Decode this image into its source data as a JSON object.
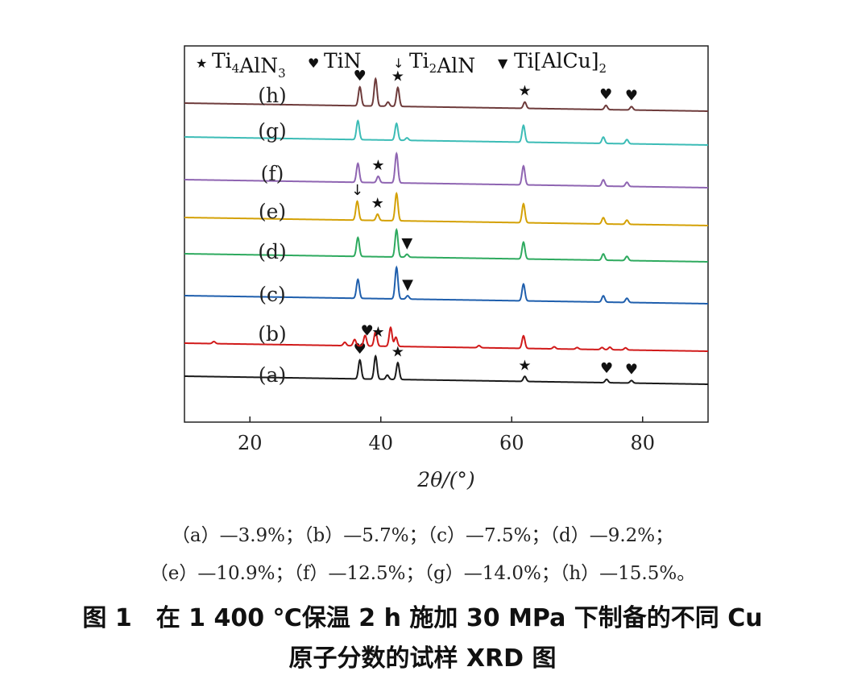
{
  "chart_data": {
    "type": "line",
    "xlabel": "2θ/(°)",
    "xlim": [
      10,
      90
    ],
    "xticks": [
      20,
      40,
      60,
      80
    ],
    "grid": false,
    "legend": {
      "placement": "top",
      "entries": [
        {
          "marker": "★",
          "label": "Ti4AlN3"
        },
        {
          "marker": "♥",
          "label": "TiN"
        },
        {
          "marker": "↓",
          "label": "Ti2AlN"
        },
        {
          "marker": "▼",
          "label": "Ti[AlCu]2"
        }
      ]
    },
    "series": [
      {
        "name": "(a)",
        "color": "#1a1a1a",
        "peaks": [
          [
            36.8,
            0.45
          ],
          [
            39.2,
            0.55
          ],
          [
            41.0,
            0.1
          ],
          [
            42.6,
            0.4
          ],
          [
            62.0,
            0.12
          ],
          [
            74.5,
            0.08
          ],
          [
            78.3,
            0.06
          ]
        ],
        "markers": [
          {
            "x": 36.8,
            "symbol": "♥"
          },
          {
            "x": 42.6,
            "symbol": "★"
          },
          {
            "x": 62.0,
            "symbol": "★"
          },
          {
            "x": 74.5,
            "symbol": "♥"
          },
          {
            "x": 78.3,
            "symbol": "♥"
          }
        ]
      },
      {
        "name": "(b)",
        "color": "#d11a1a",
        "peaks": [
          [
            14.5,
            0.05
          ],
          [
            34.5,
            0.08
          ],
          [
            36.0,
            0.15
          ],
          [
            37.6,
            0.25
          ],
          [
            39.2,
            0.35
          ],
          [
            41.5,
            0.45
          ],
          [
            42.3,
            0.22
          ],
          [
            55.0,
            0.05
          ],
          [
            61.8,
            0.3
          ],
          [
            66.5,
            0.05
          ],
          [
            70.0,
            0.04
          ],
          [
            73.8,
            0.05
          ],
          [
            75.0,
            0.06
          ],
          [
            77.4,
            0.05
          ]
        ],
        "markers": [
          {
            "x": 37.9,
            "symbol": "♥"
          },
          {
            "x": 39.6,
            "symbol": "★"
          }
        ]
      },
      {
        "name": "(c)",
        "color": "#1f5fad",
        "peaks": [
          [
            36.5,
            0.45
          ],
          [
            42.4,
            0.75
          ],
          [
            44.1,
            0.08
          ],
          [
            61.8,
            0.4
          ],
          [
            74.0,
            0.15
          ],
          [
            77.6,
            0.1
          ]
        ],
        "markers": [
          {
            "x": 44.1,
            "symbol": "▼"
          }
        ]
      },
      {
        "name": "(d)",
        "color": "#2eaa5f",
        "peaks": [
          [
            36.5,
            0.45
          ],
          [
            42.4,
            0.65
          ],
          [
            44.0,
            0.07
          ],
          [
            61.8,
            0.4
          ],
          [
            74.0,
            0.15
          ],
          [
            77.6,
            0.1
          ]
        ],
        "markers": [
          {
            "x": 44.0,
            "symbol": "▼"
          }
        ]
      },
      {
        "name": "(e)",
        "color": "#d4a106",
        "peaks": [
          [
            36.4,
            0.45
          ],
          [
            39.5,
            0.15
          ],
          [
            42.4,
            0.65
          ],
          [
            61.8,
            0.45
          ],
          [
            74.0,
            0.15
          ],
          [
            77.6,
            0.1
          ]
        ],
        "markers": [
          {
            "x": 36.4,
            "symbol": "↓"
          },
          {
            "x": 39.5,
            "symbol": "★"
          }
        ]
      },
      {
        "name": "(f)",
        "color": "#8f65b2",
        "peaks": [
          [
            36.5,
            0.45
          ],
          [
            39.6,
            0.15
          ],
          [
            42.4,
            0.7
          ],
          [
            61.8,
            0.45
          ],
          [
            74.0,
            0.15
          ],
          [
            77.6,
            0.1
          ]
        ],
        "markers": [
          {
            "x": 39.6,
            "symbol": "★"
          }
        ]
      },
      {
        "name": "(g)",
        "color": "#3cbcb6",
        "peaks": [
          [
            36.5,
            0.45
          ],
          [
            42.4,
            0.4
          ],
          [
            44.0,
            0.06
          ],
          [
            61.8,
            0.4
          ],
          [
            74.0,
            0.15
          ],
          [
            77.6,
            0.1
          ]
        ],
        "markers": []
      },
      {
        "name": "(h)",
        "color": "#6e3b3b",
        "peaks": [
          [
            36.8,
            0.45
          ],
          [
            39.2,
            0.65
          ],
          [
            41.1,
            0.1
          ],
          [
            42.6,
            0.45
          ],
          [
            62.0,
            0.15
          ],
          [
            74.4,
            0.1
          ],
          [
            78.3,
            0.08
          ]
        ],
        "markers": [
          {
            "x": 36.8,
            "symbol": "♥"
          },
          {
            "x": 42.6,
            "symbol": "★"
          },
          {
            "x": 62.0,
            "symbol": "★"
          },
          {
            "x": 74.4,
            "symbol": "♥"
          },
          {
            "x": 78.3,
            "symbol": "♥"
          }
        ]
      }
    ]
  },
  "notes": {
    "line1": "（a）—3.9%；（b）—5.7%；（c）—7.5%；（d）—9.2%；",
    "line2": "（e）—10.9%；（f）—12.5%；（g）—14.0%；（h）—15.5%。"
  },
  "caption": {
    "line1": "图 1　在 1 400 ℃保温 2 h 施加 30 MPa 下制备的不同 Cu",
    "line2": "原子分数的试样 XRD 图"
  }
}
